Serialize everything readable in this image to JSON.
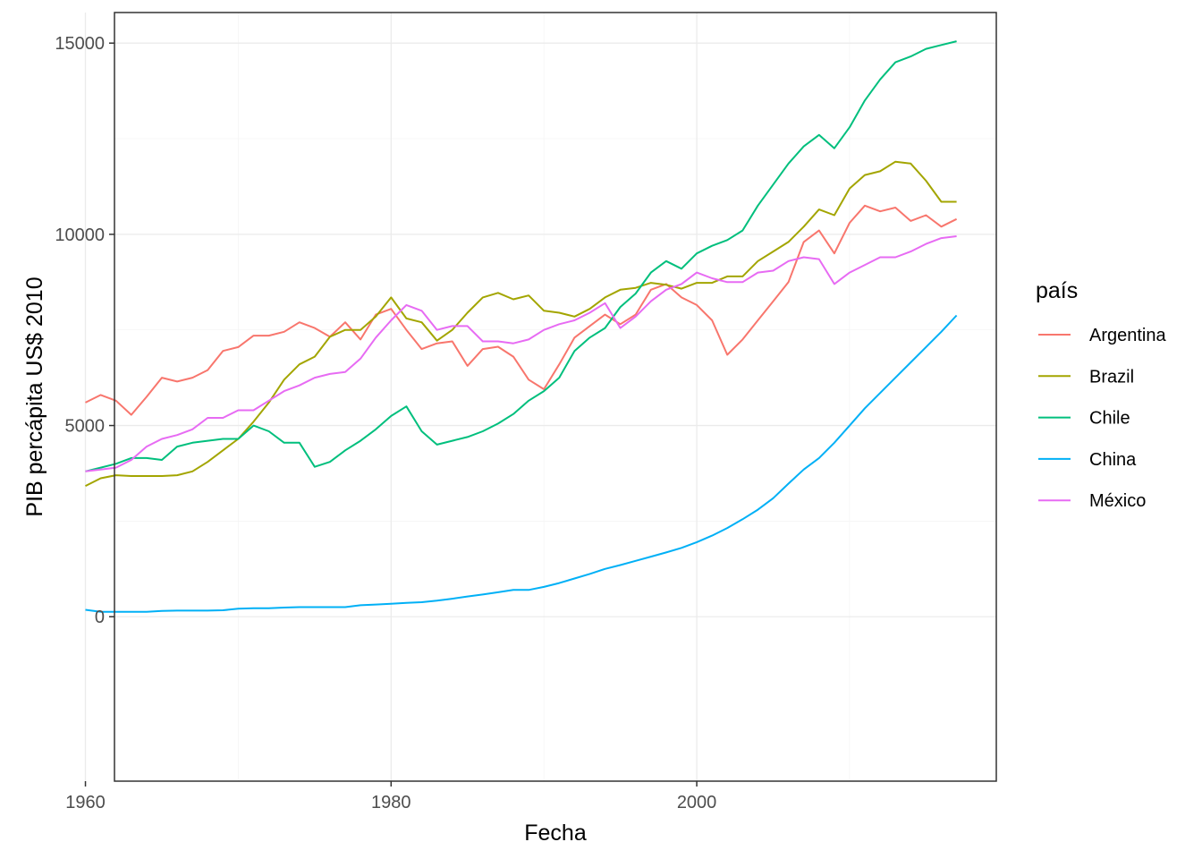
{
  "chart_data": {
    "type": "line",
    "xlabel": "Fecha",
    "ylabel": "PIB percápita US$ 2010",
    "legend_title": "país",
    "legend_position": "right",
    "grid": true,
    "xlim": [
      1961.9,
      2019.6
    ],
    "ylim": [
      -4300,
      15800
    ],
    "x_ticks": [
      1960,
      1980,
      2000
    ],
    "x_minor": [
      1970,
      1990,
      2010
    ],
    "y_ticks": [
      0,
      5000,
      10000,
      15000
    ],
    "y_minor": [
      2500,
      7500,
      12500
    ],
    "x": [
      1960,
      1961,
      1962,
      1963,
      1964,
      1965,
      1966,
      1967,
      1968,
      1969,
      1970,
      1971,
      1972,
      1973,
      1974,
      1975,
      1976,
      1977,
      1978,
      1979,
      1980,
      1981,
      1982,
      1983,
      1984,
      1985,
      1986,
      1987,
      1988,
      1989,
      1990,
      1991,
      1992,
      1993,
      1994,
      1995,
      1996,
      1997,
      1998,
      1999,
      2000,
      2001,
      2002,
      2003,
      2004,
      2005,
      2006,
      2007,
      2008,
      2009,
      2010,
      2011,
      2012,
      2013,
      2014,
      2015,
      2016,
      2017
    ],
    "series": [
      {
        "name": "Argentina",
        "color": "#F8766D",
        "values": [
          5600,
          5800,
          5650,
          5280,
          5750,
          6250,
          6150,
          6250,
          6450,
          6950,
          7050,
          7350,
          7350,
          7450,
          7700,
          7550,
          7320,
          7700,
          7250,
          7900,
          8050,
          7500,
          7000,
          7150,
          7200,
          6560,
          7000,
          7060,
          6800,
          6200,
          5950,
          6600,
          7300,
          7600,
          7900,
          7650,
          7900,
          8550,
          8700,
          8350,
          8150,
          7750,
          6850,
          7250,
          7750,
          8250,
          8750,
          9800,
          10100,
          9500,
          10300,
          10750,
          10600,
          10700,
          10350,
          10500,
          10200,
          10400
        ]
      },
      {
        "name": "Brazil",
        "color": "#A3A500",
        "values": [
          3420,
          3620,
          3700,
          3680,
          3680,
          3680,
          3700,
          3800,
          4050,
          4350,
          4650,
          5100,
          5600,
          6200,
          6600,
          6800,
          7320,
          7500,
          7500,
          7850,
          8350,
          7800,
          7700,
          7220,
          7500,
          7950,
          8350,
          8470,
          8300,
          8400,
          8000,
          7950,
          7850,
          8050,
          8350,
          8550,
          8600,
          8730,
          8680,
          8580,
          8730,
          8730,
          8900,
          8900,
          9300,
          9550,
          9800,
          10200,
          10650,
          10500,
          11200,
          11550,
          11650,
          11900,
          11850,
          11400,
          10850,
          10850
        ]
      },
      {
        "name": "Chile",
        "color": "#00BF7D",
        "values": [
          3800,
          3900,
          4000,
          4150,
          4150,
          4100,
          4450,
          4550,
          4600,
          4650,
          4650,
          5000,
          4850,
          4550,
          4550,
          3920,
          4050,
          4350,
          4600,
          4900,
          5250,
          5500,
          4850,
          4500,
          4600,
          4700,
          4850,
          5050,
          5300,
          5650,
          5900,
          6250,
          6950,
          7300,
          7550,
          8100,
          8450,
          9000,
          9300,
          9100,
          9500,
          9700,
          9850,
          10100,
          10750,
          11300,
          11850,
          12300,
          12600,
          12250,
          12800,
          13500,
          14050,
          14500,
          14650,
          14850,
          14950,
          15050
        ]
      },
      {
        "name": "China",
        "color": "#00B0F6",
        "values": [
          180,
          130,
          130,
          130,
          130,
          150,
          160,
          160,
          160,
          170,
          210,
          220,
          220,
          240,
          250,
          250,
          250,
          250,
          300,
          320,
          340,
          360,
          380,
          420,
          470,
          530,
          580,
          640,
          700,
          700,
          780,
          880,
          1000,
          1120,
          1250,
          1350,
          1460,
          1570,
          1680,
          1800,
          1950,
          2120,
          2320,
          2550,
          2800,
          3100,
          3480,
          3850,
          4150,
          4550,
          5000,
          5450,
          5850,
          6250,
          6650,
          7050,
          7450,
          7880
        ]
      },
      {
        "name": "México",
        "color": "#E76BF3",
        "values": [
          3800,
          3850,
          3900,
          4100,
          4450,
          4650,
          4750,
          4900,
          5200,
          5200,
          5400,
          5400,
          5650,
          5900,
          6050,
          6250,
          6350,
          6400,
          6750,
          7300,
          7750,
          8150,
          8000,
          7500,
          7600,
          7600,
          7200,
          7200,
          7150,
          7250,
          7500,
          7650,
          7750,
          7950,
          8200,
          7550,
          7850,
          8250,
          8550,
          8700,
          9000,
          8850,
          8750,
          8750,
          9000,
          9050,
          9300,
          9400,
          9350,
          8700,
          9000,
          9200,
          9400,
          9400,
          9550,
          9750,
          9900,
          9950
        ]
      }
    ]
  }
}
